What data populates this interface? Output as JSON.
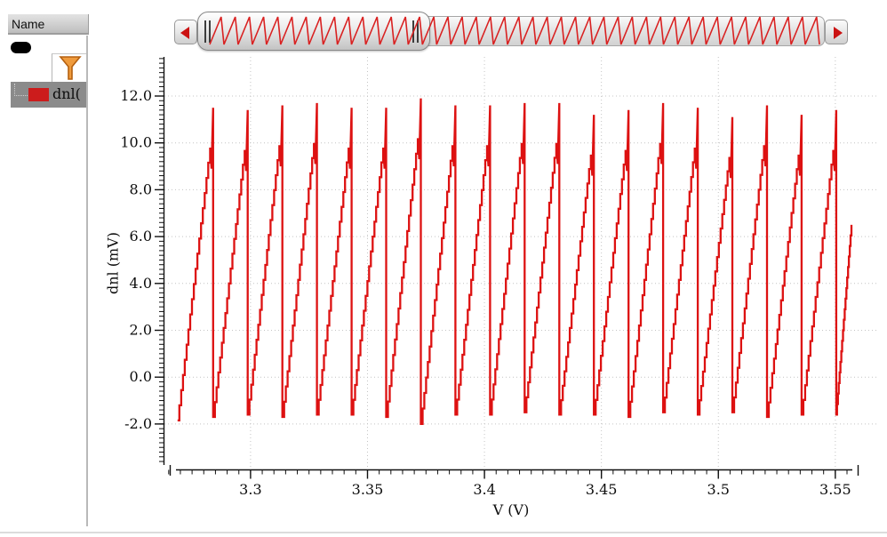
{
  "sidebar": {
    "header": "Name",
    "signal": {
      "label": "dnl(",
      "swatch_color": "#cc1c1c"
    }
  },
  "overview": {
    "teeth_count": 43,
    "wave_color": "#d92121",
    "left_arrow_icon": "left-triangle",
    "right_arrow_icon": "right-triangle"
  },
  "chart_data": {
    "type": "line",
    "title": "",
    "xlabel": "V (V)",
    "ylabel": "dnl (mV)",
    "series_name": "dnl(",
    "series_color": "#dd1111",
    "grid": "dotted",
    "grid_color": "#c4c4c4",
    "xlim": [
      3.2628,
      3.5569
    ],
    "ylim": [
      -3.75,
      13.67
    ],
    "x_major_ticks": [
      3.3,
      3.35,
      3.4,
      3.45,
      3.5,
      3.55
    ],
    "x_tick_labels": [
      "3.3",
      "3.35",
      "3.4",
      "3.45",
      "3.5",
      "3.55"
    ],
    "x_minor_step": 0.005,
    "y_major_ticks": [
      -2,
      0,
      2,
      4,
      6,
      8,
      10,
      12
    ],
    "y_tick_labels": [
      "-2.0",
      "0.0",
      "2.0",
      "4.0",
      "6.0",
      "8.0",
      "10.0",
      "12.0"
    ],
    "y_minor_step": 0.2,
    "waveform": {
      "start": {
        "x": 3.2688,
        "y": -1.85
      },
      "pre_peak_gap": 1.7,
      "notch_depth": 0.9,
      "teeth": [
        {
          "x_drop": 3.284,
          "peak": 11.5,
          "bottom": -1.7
        },
        {
          "x_drop": 3.2988,
          "peak": 11.4,
          "bottom": -1.6
        },
        {
          "x_drop": 3.3136,
          "peak": 11.6,
          "bottom": -1.7
        },
        {
          "x_drop": 3.3284,
          "peak": 11.7,
          "bottom": -1.6
        },
        {
          "x_drop": 3.3432,
          "peak": 11.5,
          "bottom": -1.6
        },
        {
          "x_drop": 3.358,
          "peak": 11.5,
          "bottom": -1.7
        },
        {
          "x_drop": 3.3728,
          "peak": 11.9,
          "bottom": -2.0
        },
        {
          "x_drop": 3.3876,
          "peak": 11.6,
          "bottom": -1.6
        },
        {
          "x_drop": 3.4024,
          "peak": 11.6,
          "bottom": -1.6
        },
        {
          "x_drop": 3.4172,
          "peak": 11.7,
          "bottom": -1.5
        },
        {
          "x_drop": 3.432,
          "peak": 11.7,
          "bottom": -1.6
        },
        {
          "x_drop": 3.4468,
          "peak": 11.2,
          "bottom": -1.6
        },
        {
          "x_drop": 3.4616,
          "peak": 11.4,
          "bottom": -1.7
        },
        {
          "x_drop": 3.4764,
          "peak": 11.7,
          "bottom": -1.5
        },
        {
          "x_drop": 3.4912,
          "peak": 11.5,
          "bottom": -1.6
        },
        {
          "x_drop": 3.506,
          "peak": 11.1,
          "bottom": -1.5
        },
        {
          "x_drop": 3.5208,
          "peak": 11.6,
          "bottom": -1.7
        },
        {
          "x_drop": 3.5356,
          "peak": 11.2,
          "bottom": -1.6
        },
        {
          "x_drop": 3.5504,
          "peak": 11.4,
          "bottom": -1.6
        }
      ],
      "tail": {
        "x_end": 3.5569,
        "y_end": 6.5
      }
    }
  }
}
